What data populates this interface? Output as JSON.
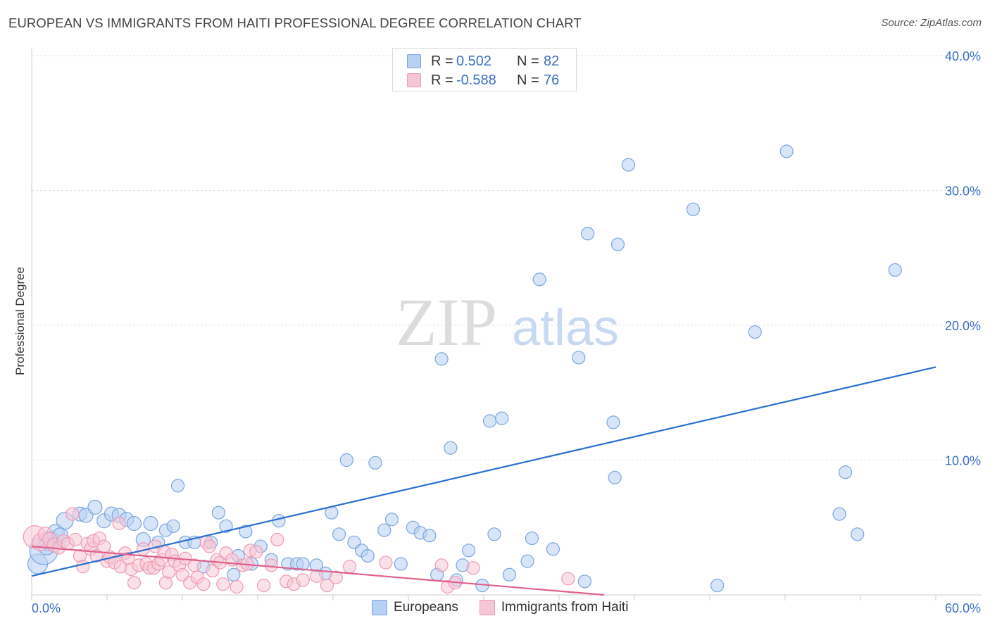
{
  "title": "EUROPEAN VS IMMIGRANTS FROM HAITI PROFESSIONAL DEGREE CORRELATION CHART",
  "source": "Source: ZipAtlas.com",
  "watermark": {
    "zip": "ZIP",
    "atlas": "atlas"
  },
  "legend": {
    "rows": [
      {
        "r_label": "R =",
        "r_value": "0.502",
        "n_label": "N =",
        "n_value": "82",
        "color": "#7aa6e0",
        "fill": "#b8d0f2"
      },
      {
        "r_label": "R =",
        "r_value": "-0.588",
        "n_label": "N =",
        "n_value": "76",
        "color": "#ee9ab5",
        "fill": "#f7c6d6"
      }
    ]
  },
  "bottom_legend": [
    {
      "label": "Europeans",
      "fill": "#b8d0f2",
      "stroke": "#7aa6e0"
    },
    {
      "label": "Immigrants from Haiti",
      "fill": "#f7c6d6",
      "stroke": "#ee9ab5"
    }
  ],
  "chart_data": {
    "type": "scatter",
    "title": "EUROPEAN VS IMMIGRANTS FROM HAITI PROFESSIONAL DEGREE CORRELATION CHART",
    "xlabel": "",
    "ylabel": "Professional Degree",
    "xlim": [
      0,
      60
    ],
    "ylim": [
      0,
      40
    ],
    "x_tick_labels": [
      {
        "value": 0,
        "label": "0.0%"
      },
      {
        "value": 60,
        "label": "60.0%"
      }
    ],
    "y_tick_labels": [
      {
        "value": 10,
        "label": "10.0%"
      },
      {
        "value": 20,
        "label": "20.0%"
      },
      {
        "value": 30,
        "label": "30.0%"
      },
      {
        "value": 40,
        "label": "40.0%"
      }
    ],
    "grid": true,
    "series": [
      {
        "name": "Europeans",
        "color": "#7aa6e0",
        "fill": "#b8d0f2",
        "line_color": "#2a6fd0",
        "trend": {
          "x": [
            0,
            60
          ],
          "y": [
            1.4,
            16.9
          ]
        },
        "points": [
          [
            0.4,
            2.3,
            14
          ],
          [
            0.8,
            3.3,
            20
          ],
          [
            1.2,
            4.0,
            14
          ],
          [
            1.6,
            4.6,
            12
          ],
          [
            2.2,
            5.5,
            12
          ],
          [
            3.2,
            6.0,
            10
          ],
          [
            3.6,
            5.9,
            10
          ],
          [
            4.2,
            6.5,
            10
          ],
          [
            4.8,
            5.5,
            10
          ],
          [
            5.3,
            6.0,
            10
          ],
          [
            5.8,
            5.9,
            10
          ],
          [
            6.3,
            5.6,
            10
          ],
          [
            6.8,
            5.3,
            10
          ],
          [
            7.4,
            4.1,
            10
          ],
          [
            7.9,
            5.3,
            10
          ],
          [
            8.4,
            3.9,
            9
          ],
          [
            8.9,
            4.8,
            9
          ],
          [
            9.4,
            5.1,
            9
          ],
          [
            9.7,
            8.1,
            9
          ],
          [
            10.2,
            3.9,
            9
          ],
          [
            10.8,
            3.9,
            9
          ],
          [
            11.4,
            2.1,
            9
          ],
          [
            11.9,
            3.9,
            9
          ],
          [
            12.4,
            6.1,
            9
          ],
          [
            12.9,
            5.1,
            9
          ],
          [
            13.4,
            1.5,
            9
          ],
          [
            13.7,
            2.9,
            9
          ],
          [
            14.2,
            4.7,
            9
          ],
          [
            14.6,
            2.3,
            9
          ],
          [
            15.2,
            3.6,
            9
          ],
          [
            15.9,
            2.6,
            9
          ],
          [
            16.4,
            5.5,
            9
          ],
          [
            17.0,
            2.3,
            9
          ],
          [
            17.6,
            2.3,
            9
          ],
          [
            18.0,
            2.3,
            9
          ],
          [
            18.9,
            2.2,
            9
          ],
          [
            19.5,
            1.6,
            9
          ],
          [
            19.9,
            6.1,
            9
          ],
          [
            20.4,
            4.5,
            9
          ],
          [
            20.9,
            10.0,
            9
          ],
          [
            21.4,
            3.9,
            9
          ],
          [
            21.9,
            3.3,
            9
          ],
          [
            22.3,
            2.9,
            9
          ],
          [
            22.8,
            9.8,
            9
          ],
          [
            23.4,
            4.8,
            9
          ],
          [
            23.9,
            5.6,
            9
          ],
          [
            24.5,
            2.3,
            9
          ],
          [
            25.3,
            5.0,
            9
          ],
          [
            25.8,
            4.6,
            9
          ],
          [
            26.4,
            4.4,
            9
          ],
          [
            26.9,
            1.5,
            9
          ],
          [
            27.2,
            17.5,
            9
          ],
          [
            27.8,
            10.9,
            9
          ],
          [
            28.2,
            1.1,
            9
          ],
          [
            28.6,
            2.2,
            9
          ],
          [
            29.0,
            3.3,
            9
          ],
          [
            29.9,
            0.7,
            9
          ],
          [
            30.4,
            12.9,
            9
          ],
          [
            30.7,
            4.5,
            9
          ],
          [
            31.2,
            13.1,
            9
          ],
          [
            31.7,
            1.5,
            9
          ],
          [
            32.9,
            2.5,
            9
          ],
          [
            33.2,
            4.2,
            9
          ],
          [
            33.7,
            23.4,
            9
          ],
          [
            34.6,
            3.4,
            9
          ],
          [
            36.3,
            17.6,
            9
          ],
          [
            36.7,
            1.0,
            9
          ],
          [
            36.9,
            26.8,
            9
          ],
          [
            38.6,
            12.8,
            9
          ],
          [
            38.9,
            26.0,
            9
          ],
          [
            38.7,
            8.7,
            9
          ],
          [
            39.6,
            31.9,
            9
          ],
          [
            43.9,
            28.6,
            9
          ],
          [
            45.5,
            0.7,
            9
          ],
          [
            48.0,
            19.5,
            9
          ],
          [
            50.1,
            32.9,
            9
          ],
          [
            53.6,
            6.0,
            9
          ],
          [
            54.0,
            9.1,
            9
          ],
          [
            54.8,
            4.5,
            9
          ],
          [
            57.3,
            24.1,
            9
          ],
          [
            1.0,
            3.6,
            12
          ],
          [
            1.9,
            4.4,
            11
          ]
        ]
      },
      {
        "name": "Immigrants from Haiti",
        "color": "#ee9ab5",
        "fill": "#f7c6d6",
        "line_color": "#e0608a",
        "trend": {
          "x": [
            0,
            38
          ],
          "y": [
            3.6,
            0.0
          ]
        },
        "points": [
          [
            0.2,
            4.3,
            16
          ],
          [
            0.6,
            3.9,
            12
          ],
          [
            0.9,
            4.5,
            10
          ],
          [
            1.2,
            4.1,
            10
          ],
          [
            1.5,
            3.7,
            10
          ],
          [
            1.8,
            3.5,
            9
          ],
          [
            2.1,
            4.0,
            9
          ],
          [
            2.4,
            3.8,
            9
          ],
          [
            2.7,
            6.0,
            9
          ],
          [
            2.9,
            4.1,
            9
          ],
          [
            3.2,
            2.9,
            9
          ],
          [
            3.4,
            2.1,
            9
          ],
          [
            3.7,
            3.8,
            9
          ],
          [
            3.9,
            3.4,
            9
          ],
          [
            4.1,
            4.0,
            9
          ],
          [
            4.3,
            2.9,
            9
          ],
          [
            4.5,
            4.2,
            9
          ],
          [
            4.8,
            3.6,
            9
          ],
          [
            5.0,
            2.5,
            9
          ],
          [
            5.2,
            2.8,
            9
          ],
          [
            5.5,
            2.4,
            9
          ],
          [
            5.8,
            5.3,
            9
          ],
          [
            5.9,
            2.1,
            9
          ],
          [
            6.2,
            3.1,
            9
          ],
          [
            6.4,
            2.7,
            9
          ],
          [
            6.6,
            1.9,
            9
          ],
          [
            6.8,
            0.9,
            9
          ],
          [
            7.1,
            2.2,
            9
          ],
          [
            7.4,
            3.4,
            9
          ],
          [
            7.6,
            2.3,
            9
          ],
          [
            7.8,
            2.0,
            9
          ],
          [
            8.1,
            2.0,
            9
          ],
          [
            8.2,
            3.6,
            9
          ],
          [
            8.4,
            2.3,
            9
          ],
          [
            8.6,
            2.6,
            9
          ],
          [
            8.8,
            3.2,
            9
          ],
          [
            8.9,
            0.9,
            9
          ],
          [
            9.1,
            1.7,
            9
          ],
          [
            9.3,
            3.0,
            9
          ],
          [
            9.5,
            2.5,
            9
          ],
          [
            9.8,
            2.2,
            9
          ],
          [
            10.0,
            1.5,
            9
          ],
          [
            10.2,
            2.7,
            9
          ],
          [
            10.5,
            0.9,
            9
          ],
          [
            10.8,
            2.2,
            9
          ],
          [
            11.0,
            1.3,
            9
          ],
          [
            11.4,
            0.8,
            9
          ],
          [
            11.6,
            3.9,
            9
          ],
          [
            11.8,
            3.6,
            9
          ],
          [
            12.0,
            1.8,
            9
          ],
          [
            12.3,
            2.6,
            9
          ],
          [
            12.5,
            2.4,
            9
          ],
          [
            12.7,
            0.8,
            9
          ],
          [
            12.9,
            3.1,
            9
          ],
          [
            13.3,
            2.6,
            9
          ],
          [
            13.6,
            0.6,
            9
          ],
          [
            14.0,
            2.2,
            9
          ],
          [
            14.3,
            2.3,
            9
          ],
          [
            14.5,
            3.3,
            9
          ],
          [
            14.9,
            3.2,
            9
          ],
          [
            15.4,
            0.7,
            9
          ],
          [
            15.9,
            2.2,
            9
          ],
          [
            16.3,
            4.1,
            9
          ],
          [
            16.9,
            1.0,
            9
          ],
          [
            17.4,
            0.8,
            9
          ],
          [
            18.0,
            1.1,
            9
          ],
          [
            18.9,
            1.4,
            9
          ],
          [
            19.6,
            0.7,
            9
          ],
          [
            20.2,
            1.3,
            9
          ],
          [
            21.1,
            2.1,
            9
          ],
          [
            23.5,
            2.4,
            9
          ],
          [
            27.2,
            2.2,
            9
          ],
          [
            27.6,
            0.6,
            9
          ],
          [
            28.1,
            0.9,
            9
          ],
          [
            29.3,
            2.0,
            9
          ],
          [
            35.6,
            1.2,
            9
          ]
        ]
      }
    ]
  }
}
